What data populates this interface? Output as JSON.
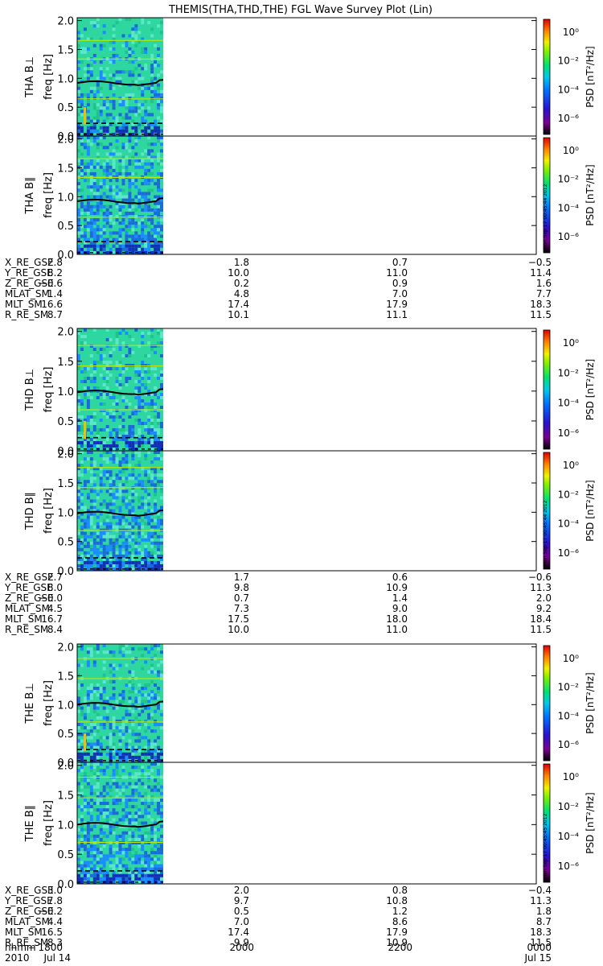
{
  "title": "THEMIS(THA,THD,THE) FGL Wave Survey Plot (Lin)",
  "colors": {
    "noise_base": "#2fd7a0",
    "band_line": "#b6e60a",
    "profile_line": "#000000",
    "axis": "#000000"
  },
  "chart_data": [
    {
      "type": "heatmap",
      "probe": "THA",
      "panels": [
        {
          "ylabel_line1": "THA B⊥",
          "ylabel_line2": "freq [Hz]",
          "yticks": [
            "0.0",
            "0.5",
            "1.0",
            "1.5",
            "2.0"
          ],
          "ylim": [
            0,
            2.05
          ],
          "cbar_label": "PSD [nT²/Hz]",
          "cbar_ticks": [
            "10⁰",
            "10⁻²",
            "10⁻⁴",
            "10⁻⁶"
          ],
          "stamp": "",
          "solid_curve": 0.92,
          "dashed_curve": 0.22,
          "bottom_curve": 0.03
        },
        {
          "ylabel_line1": "THA B∥",
          "ylabel_line2": "freq [Hz]",
          "yticks": [
            "0.0",
            "0.5",
            "1.0",
            "1.5",
            "2.0"
          ],
          "ylim": [
            0,
            2.05
          ],
          "cbar_label": "PSD [nT²/Hz]",
          "cbar_ticks": [
            "10⁰",
            "10⁻²",
            "10⁻⁴",
            "10⁻⁶"
          ],
          "stamp": "Mon Sep 17 00:45:44 2012",
          "solid_curve": 0.92,
          "dashed_curve": 0.22,
          "bottom_curve": 0.03
        }
      ],
      "ephemeris": {
        "labels": [
          "X_RE_GSE",
          "Y_RE_GSE",
          "Z_RE_GSE",
          "MLAT_SM",
          "MLT_SM",
          "R_RE_SM"
        ],
        "columns": [
          [
            "2.8",
            "8.2",
            "−0.6",
            "1.4",
            "16.6",
            "8.7"
          ],
          [
            "1.8",
            "10.0",
            "0.2",
            "4.8",
            "17.4",
            "10.1"
          ],
          [
            "0.7",
            "11.0",
            "0.9",
            "7.0",
            "17.9",
            "11.1"
          ],
          [
            "−0.5",
            "11.4",
            "1.6",
            "7.7",
            "18.3",
            "11.5"
          ]
        ]
      }
    },
    {
      "type": "heatmap",
      "probe": "THD",
      "panels": [
        {
          "ylabel_line1": "THD B⊥",
          "ylabel_line2": "freq [Hz]",
          "yticks": [
            "0.0",
            "0.5",
            "1.0",
            "1.5",
            "2.0"
          ],
          "ylim": [
            0,
            2.05
          ],
          "cbar_label": "PSD [nT²/Hz]",
          "cbar_ticks": [
            "10⁰",
            "10⁻²",
            "10⁻⁴",
            "10⁻⁶"
          ],
          "stamp": "",
          "solid_curve": 0.98,
          "dashed_curve": 0.22,
          "bottom_curve": 0.03
        },
        {
          "ylabel_line1": "THD B∥",
          "ylabel_line2": "freq [Hz]",
          "yticks": [
            "0.0",
            "0.5",
            "1.0",
            "1.5",
            "2.0"
          ],
          "ylim": [
            0,
            2.05
          ],
          "cbar_label": "PSD [nT²/Hz]",
          "cbar_ticks": [
            "10⁰",
            "10⁻²",
            "10⁻⁴",
            "10⁻⁶"
          ],
          "stamp": "Mon Sep 17 00:45:44 2012",
          "solid_curve": 0.98,
          "dashed_curve": 0.22,
          "bottom_curve": 0.03
        }
      ],
      "ephemeris": {
        "labels": [
          "X_RE_GSE",
          "Y_RE_GSE",
          "Z_RE_GSE",
          "MLAT_SM",
          "MLT_SM",
          "R_RE_SM"
        ],
        "columns": [
          [
            "2.7",
            "8.0",
            "−0.0",
            "4.5",
            "16.7",
            "8.4"
          ],
          [
            "1.7",
            "9.8",
            "0.7",
            "7.3",
            "17.5",
            "10.0"
          ],
          [
            "0.6",
            "10.9",
            "1.4",
            "9.0",
            "18.0",
            "11.0"
          ],
          [
            "−0.6",
            "11.3",
            "2.0",
            "9.2",
            "18.4",
            "11.5"
          ]
        ]
      }
    },
    {
      "type": "heatmap",
      "probe": "THE",
      "panels": [
        {
          "ylabel_line1": "THE B⊥",
          "ylabel_line2": "freq [Hz]",
          "yticks": [
            "0.0",
            "0.5",
            "1.0",
            "1.5",
            "2.0"
          ],
          "ylim": [
            0,
            2.05
          ],
          "cbar_label": "PSD [nT²/Hz]",
          "cbar_ticks": [
            "10⁰",
            "10⁻²",
            "10⁻⁴",
            "10⁻⁶"
          ],
          "stamp": "",
          "solid_curve": 1.0,
          "dashed_curve": 0.22,
          "bottom_curve": 0.03
        },
        {
          "ylabel_line1": "THE B∥",
          "ylabel_line2": "freq [Hz]",
          "yticks": [
            "0.0",
            "0.5",
            "1.0",
            "1.5",
            "2.0"
          ],
          "ylim": [
            0,
            2.05
          ],
          "cbar_label": "PSD [nT²/Hz]",
          "cbar_ticks": [
            "10⁰",
            "10⁻²",
            "10⁻⁴",
            "10⁻⁶"
          ],
          "stamp": "Mon Sep 17 00:45:45 2012",
          "solid_curve": 1.0,
          "dashed_curve": 0.22,
          "bottom_curve": 0.03
        }
      ],
      "ephemeris": {
        "labels": [
          "X_RE_GSE",
          "Y_RE_GSE",
          "Z_RE_GSE",
          "MLAT_SM",
          "MLT_SM",
          "R_RE_SM"
        ],
        "columns": [
          [
            "3.0",
            "7.8",
            "−0.2",
            "4.4",
            "16.5",
            "8.3"
          ],
          [
            "2.0",
            "9.7",
            "0.5",
            "7.0",
            "17.4",
            "9.9"
          ],
          [
            "0.8",
            "10.8",
            "1.2",
            "8.6",
            "17.9",
            "10.9"
          ],
          [
            "−0.4",
            "11.3",
            "1.8",
            "8.7",
            "18.3",
            "11.5"
          ]
        ]
      }
    }
  ],
  "time_axis": {
    "label_hhmm": "hhmm",
    "label_year": "2010",
    "ticks": [
      "1800",
      "2000",
      "2200",
      "0000"
    ],
    "dates": [
      "Jul 14",
      "",
      "",
      "Jul 15"
    ]
  }
}
